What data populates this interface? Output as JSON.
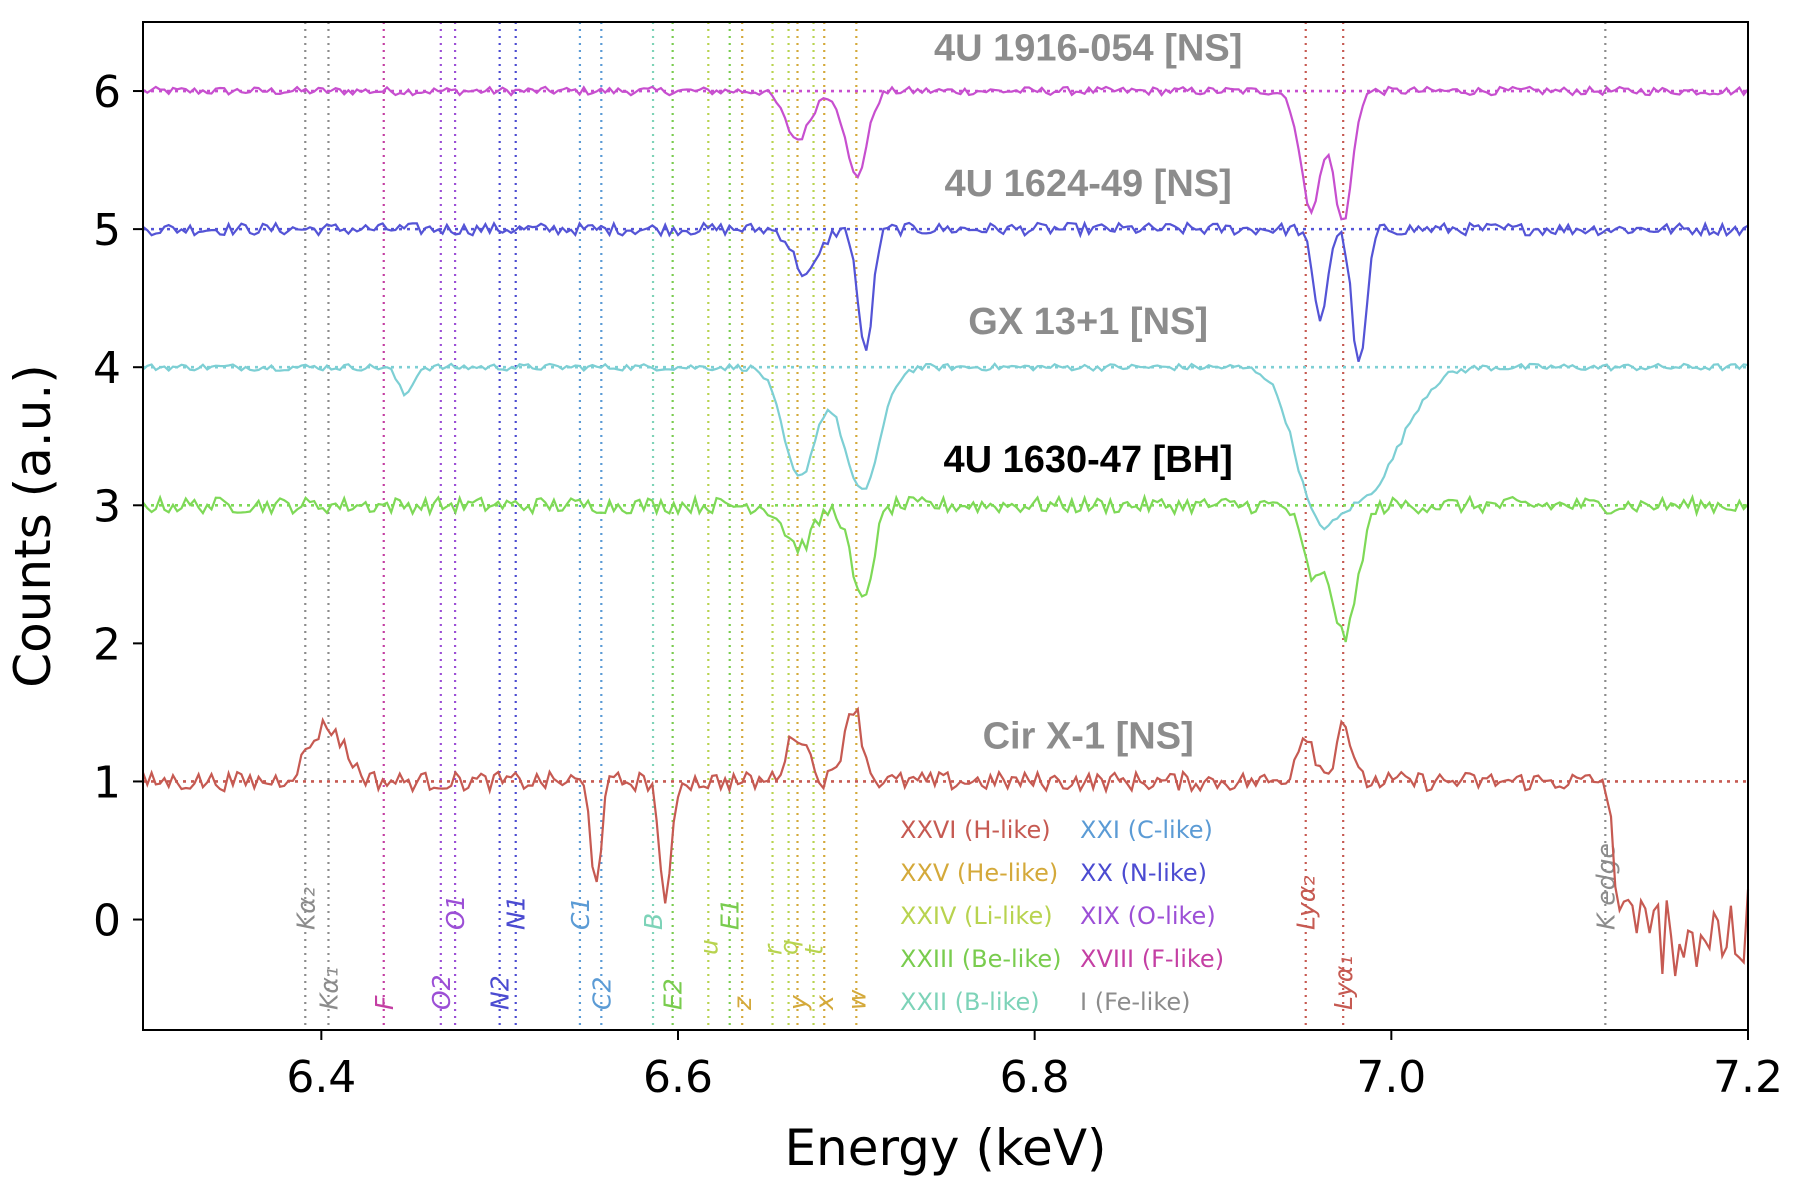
{
  "chart_data": {
    "type": "line",
    "title": "",
    "xlabel": "Energy (keV)",
    "ylabel": "Counts (a.u.)",
    "xlim": [
      6.3,
      7.2
    ],
    "ylim": [
      -0.8,
      6.5
    ],
    "grid": false,
    "xticks": [
      {
        "value": 6.4,
        "label": "6.4"
      },
      {
        "value": 6.6,
        "label": "6.6"
      },
      {
        "value": 6.8,
        "label": "6.8"
      },
      {
        "value": 7.0,
        "label": "7.0"
      },
      {
        "value": 7.2,
        "label": "7.2"
      }
    ],
    "yticks": [
      {
        "value": 0,
        "label": "0"
      },
      {
        "value": 1,
        "label": "1"
      },
      {
        "value": 2,
        "label": "2"
      },
      {
        "value": 3,
        "label": "3"
      },
      {
        "value": 4,
        "label": "4"
      },
      {
        "value": 5,
        "label": "5"
      },
      {
        "value": 6,
        "label": "6"
      }
    ],
    "series": [
      {
        "name": "4U 1916-054 [NS]",
        "baseline": 6,
        "color": "#c74fcf",
        "label_color": "#8c8c8c",
        "label_pos": [
          6.83,
          6.22
        ],
        "noise": 0.03,
        "features": [
          {
            "center": 6.667,
            "depth": -0.35,
            "width": 0.007
          },
          {
            "center": 6.7,
            "depth": -0.62,
            "width": 0.006
          },
          {
            "center": 6.955,
            "depth": -0.85,
            "width": 0.006
          },
          {
            "center": 6.973,
            "depth": -0.95,
            "width": 0.005
          }
        ]
      },
      {
        "name": "4U 1624-49 [NS]",
        "baseline": 5,
        "color": "#5454d6",
        "label_color": "#8c8c8c",
        "label_pos": [
          6.83,
          5.24
        ],
        "noise": 0.045,
        "features": [
          {
            "center": 6.672,
            "depth": -0.33,
            "width": 0.007
          },
          {
            "center": 6.705,
            "depth": -0.9,
            "width": 0.004
          },
          {
            "center": 6.96,
            "depth": -0.65,
            "width": 0.004
          },
          {
            "center": 6.982,
            "depth": -1.0,
            "width": 0.004
          }
        ]
      },
      {
        "name": "GX 13+1 [NS]",
        "baseline": 4,
        "color": "#7dcfd4",
        "label_color": "#8c8c8c",
        "label_pos": [
          6.83,
          4.24
        ],
        "noise": 0.025,
        "features": [
          {
            "center": 6.447,
            "depth": -0.2,
            "width": 0.004
          },
          {
            "center": 6.668,
            "depth": -0.8,
            "width": 0.009
          },
          {
            "center": 6.703,
            "depth": -0.9,
            "width": 0.01
          },
          {
            "center": 6.957,
            "depth": -0.75,
            "width": 0.012
          },
          {
            "center": 6.985,
            "depth": -0.9,
            "width": 0.02
          }
        ]
      },
      {
        "name": "4U 1630-47 [BH]",
        "baseline": 3,
        "color": "#7ed957",
        "label_color": "#000000",
        "label_pos": [
          6.83,
          3.24
        ],
        "noise": 0.06,
        "features": [
          {
            "center": 6.668,
            "depth": -0.3,
            "width": 0.008
          },
          {
            "center": 6.703,
            "depth": -0.7,
            "width": 0.006
          },
          {
            "center": 6.956,
            "depth": -0.5,
            "width": 0.006
          },
          {
            "center": 6.974,
            "depth": -0.95,
            "width": 0.007
          }
        ]
      },
      {
        "name": "Cir X-1  [NS]",
        "baseline": 1,
        "color": "#c65a52",
        "label_color": "#8c8c8c",
        "label_pos": [
          6.83,
          1.24
        ],
        "noise": 0.07,
        "features": [
          {
            "center": 6.403,
            "depth": 0.4,
            "width": 0.01
          },
          {
            "center": 6.554,
            "depth": -0.7,
            "width": 0.003
          },
          {
            "center": 6.593,
            "depth": -0.95,
            "width": 0.003
          },
          {
            "center": 6.667,
            "depth": 0.35,
            "width": 0.006
          },
          {
            "center": 6.698,
            "depth": 0.55,
            "width": 0.005
          },
          {
            "center": 6.952,
            "depth": 0.35,
            "width": 0.005
          },
          {
            "center": 6.973,
            "depth": 0.45,
            "width": 0.004
          }
        ],
        "edge": {
          "start": 7.12,
          "level": -0.1,
          "noise": 0.32
        }
      }
    ],
    "lines": [
      {
        "energy": 6.391,
        "label": "Kα₂",
        "color": "#8c8c8c",
        "tier": "high"
      },
      {
        "energy": 6.404,
        "label": "Kα₁",
        "color": "#8c8c8c",
        "tier": "low"
      },
      {
        "energy": 6.435,
        "label": "F",
        "color": "#c43fa3",
        "tier": "low"
      },
      {
        "energy": 6.467,
        "label": "O2",
        "color": "#9c4fd6",
        "tier": "low"
      },
      {
        "energy": 6.475,
        "label": "O1",
        "color": "#9c4fd6",
        "tier": "high"
      },
      {
        "energy": 6.5,
        "label": "N2",
        "color": "#4b4bd1",
        "tier": "low"
      },
      {
        "energy": 6.509,
        "label": "N1",
        "color": "#4b4bd1",
        "tier": "high"
      },
      {
        "energy": 6.545,
        "label": "C1",
        "color": "#5b9bd5",
        "tier": "high"
      },
      {
        "energy": 6.557,
        "label": "C2",
        "color": "#5b9bd5",
        "tier": "low"
      },
      {
        "energy": 6.586,
        "label": "B",
        "color": "#7dd3b8",
        "tier": "high"
      },
      {
        "energy": 6.597,
        "label": "E2",
        "color": "#79cc4e",
        "tier": "low"
      },
      {
        "energy": 6.617,
        "label": "u",
        "color": "#b8d34f",
        "tier": "mid"
      },
      {
        "energy": 6.629,
        "label": "E1",
        "color": "#79cc4e",
        "tier": "high"
      },
      {
        "energy": 6.636,
        "label": "z",
        "color": "#d4a93a",
        "tier": "low"
      },
      {
        "energy": 6.653,
        "label": "r",
        "color": "#b8d34f",
        "tier": "mid"
      },
      {
        "energy": 6.662,
        "label": "q",
        "color": "#b8d34f",
        "tier": "mid"
      },
      {
        "energy": 6.667,
        "label": "y",
        "color": "#d4a93a",
        "tier": "low"
      },
      {
        "energy": 6.676,
        "label": "t",
        "color": "#b8d34f",
        "tier": "mid"
      },
      {
        "energy": 6.682,
        "label": "x",
        "color": "#d4a93a",
        "tier": "low"
      },
      {
        "energy": 6.7,
        "label": "w",
        "color": "#d4a93a",
        "tier": "low"
      },
      {
        "energy": 6.952,
        "label": "Lyα₂",
        "color": "#c65a52",
        "tier": "high"
      },
      {
        "energy": 6.973,
        "label": "Lyα₁",
        "color": "#c65a52",
        "tier": "low"
      },
      {
        "energy": 7.12,
        "label": "K edge",
        "color": "#8c8c8c",
        "tier": "high"
      }
    ],
    "legend": [
      {
        "label": "XXVI (H-like)",
        "color": "#c65a52"
      },
      {
        "label": "XXV (He-like)",
        "color": "#d4a93a"
      },
      {
        "label": "XXIV (Li-like)",
        "color": "#b8d34f"
      },
      {
        "label": "XXIII (Be-like)",
        "color": "#79cc4e"
      },
      {
        "label": "XXII (B-like)",
        "color": "#7dd3b8"
      },
      {
        "label": "XXI (C-like)",
        "color": "#5b9bd5"
      },
      {
        "label": "XX (N-like)",
        "color": "#4b4bd1"
      },
      {
        "label": "XIX (O-like)",
        "color": "#9c4fd6"
      },
      {
        "label": "XVIII (F-like)",
        "color": "#c43fa3"
      },
      {
        "label": "I (Fe-like)",
        "color": "#8c8c8c"
      }
    ],
    "legend_position": "bottom-center"
  }
}
